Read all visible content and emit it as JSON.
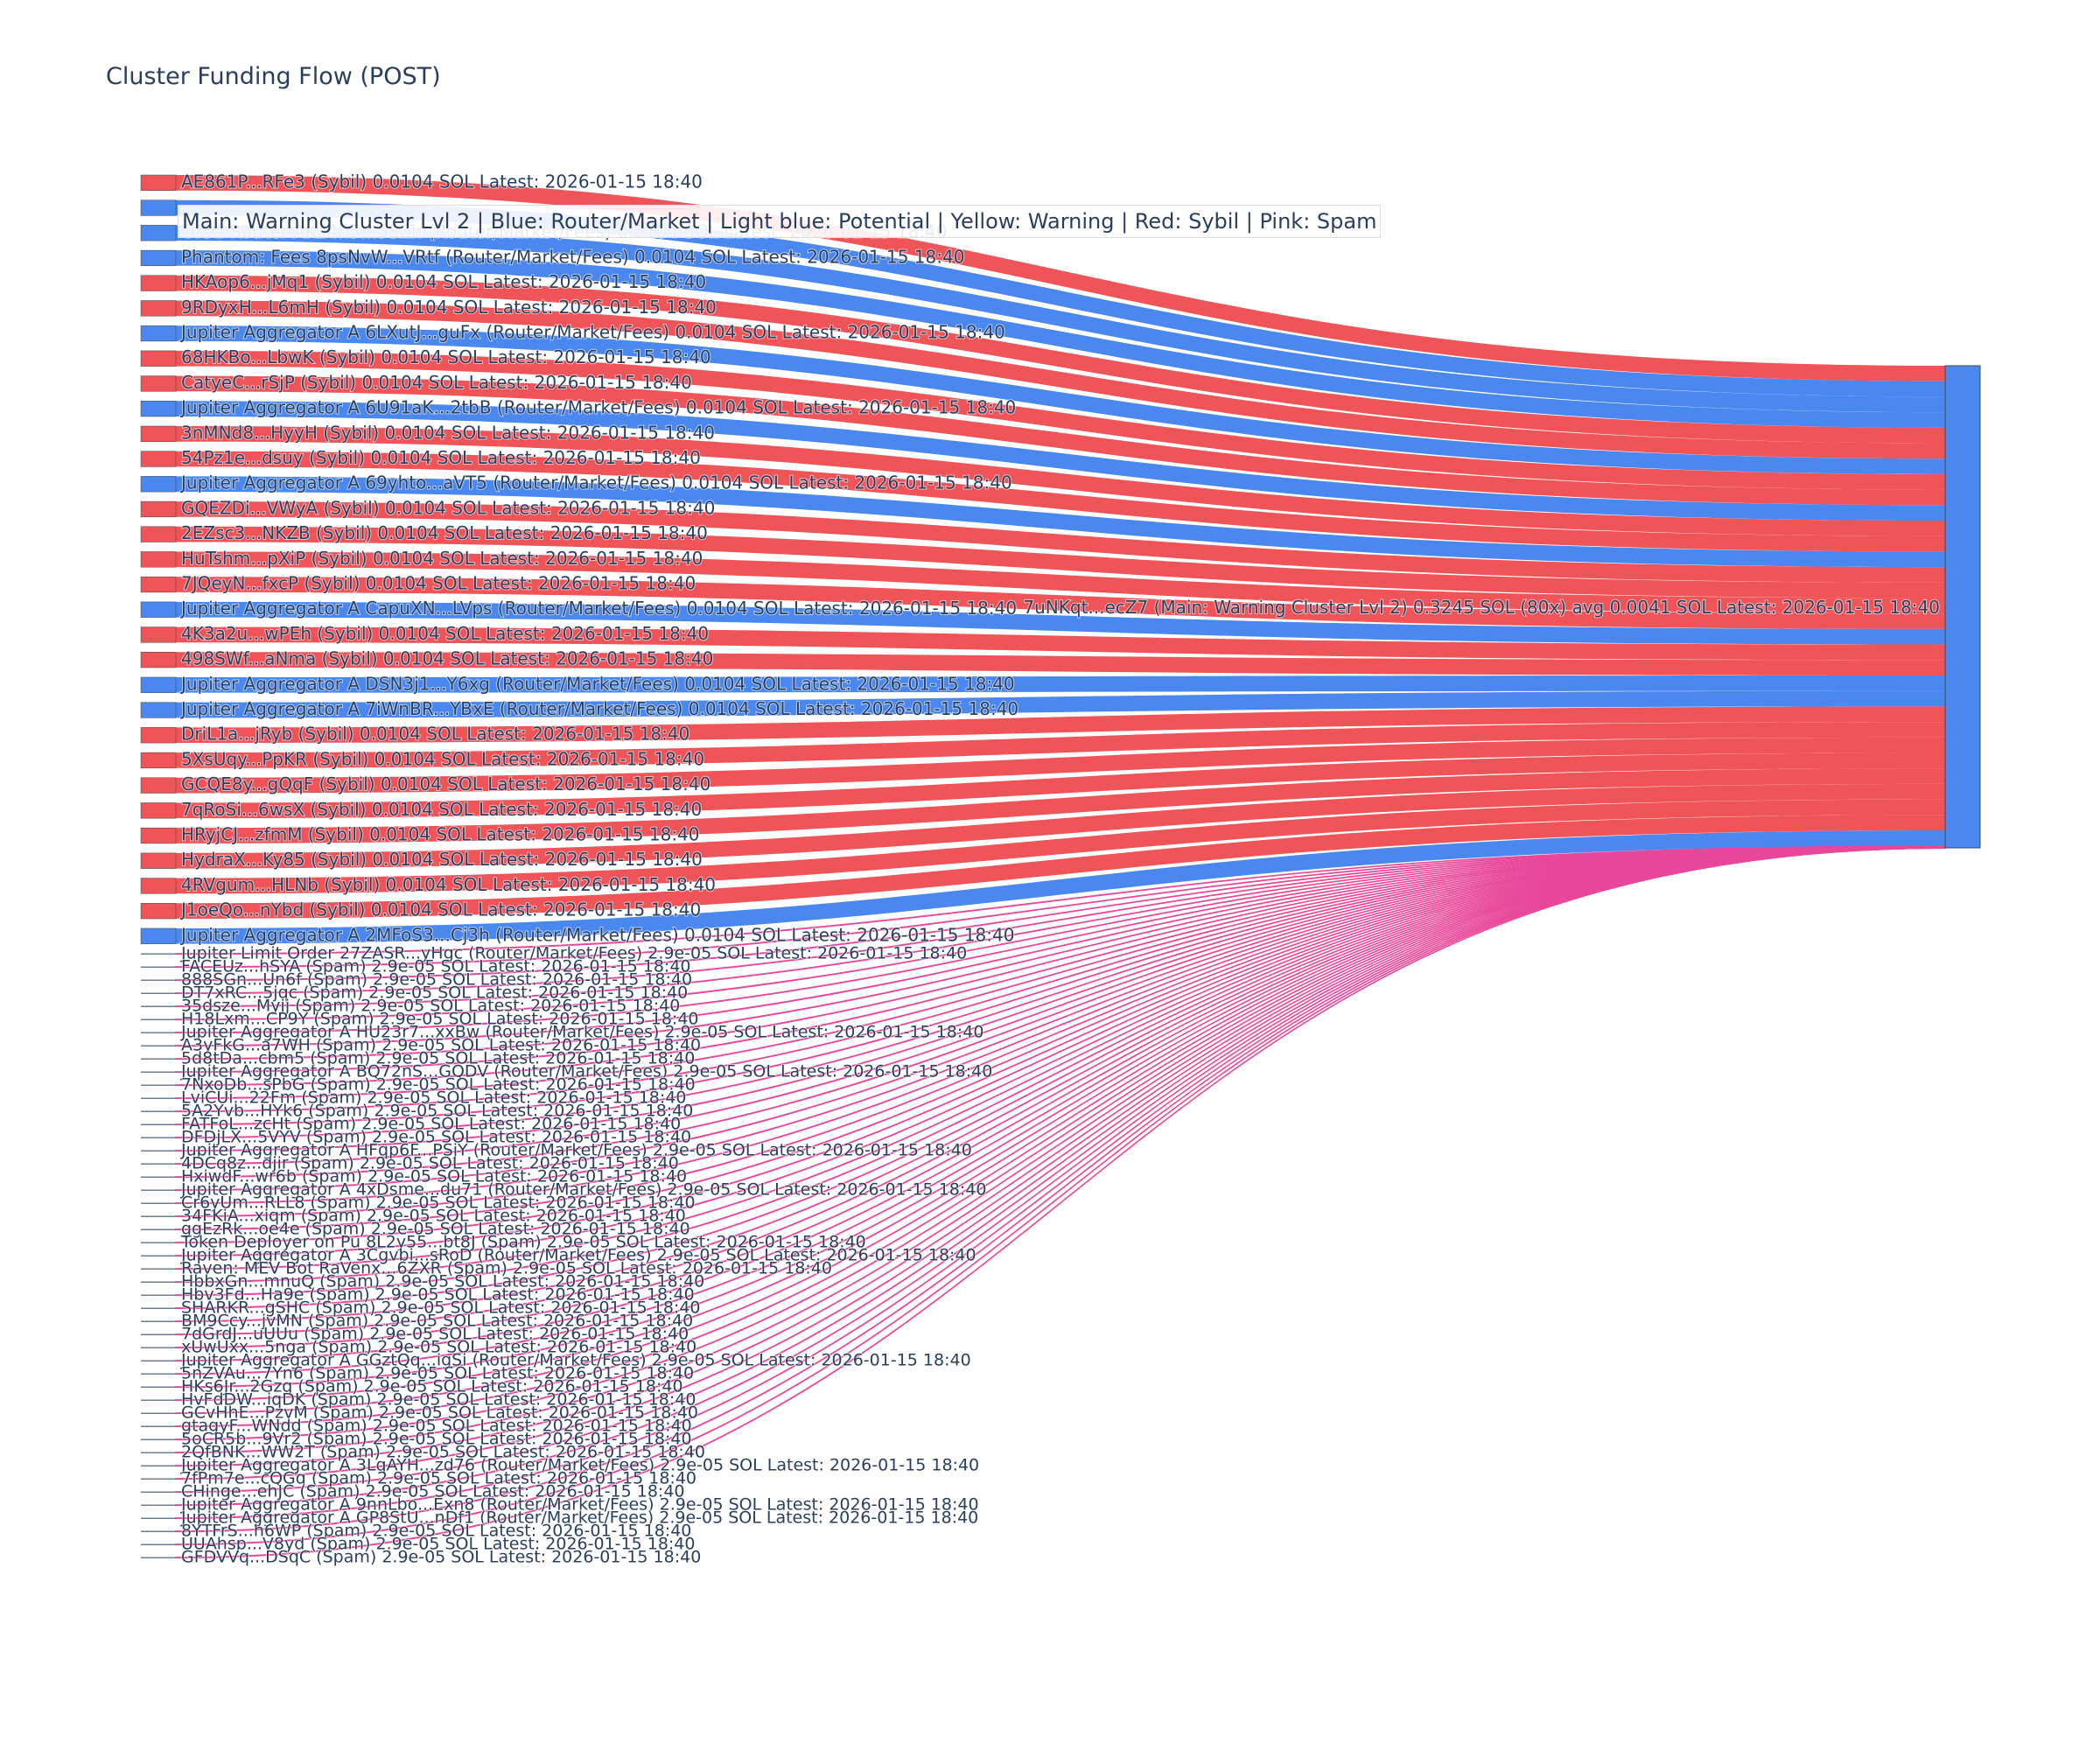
{
  "chart_data": {
    "type": "sankey",
    "title": "Cluster Funding Flow (POST)",
    "legend": "Main: Warning Cluster Lvl 2 | Blue: Router/Market | Light blue: Potential | Yellow: Warning | Red: Sybil | Pink: Spam",
    "colors": {
      "sybil": "#ef5459",
      "router": "#4a87ee",
      "spam": "#e8479a",
      "target": "#4a87ee"
    },
    "target": {
      "label": "7uNKqt...ecZ7 (Main: Warning Cluster Lvl 2) 0.3245 SOL (80x) avg 0.0041 SOL Latest: 2026-01-15 18:40",
      "value": 0.3245,
      "count": 80
    },
    "sources": [
      {
        "label": "AE861P...RFe3 (Sybil) 0.0104 SOL Latest: 2026-01-15 18:40",
        "kind": "sybil",
        "value": 0.0104
      },
      {
        "label": "",
        "kind": "router",
        "value": 0.0104
      },
      {
        "label": "OKX: Router AKu4h5...5SZh (Router/Market/Fees) 0.0104 SOL Latest: 2026-01-15 18:40",
        "kind": "router",
        "value": 0.0104
      },
      {
        "label": "Phantom: Fees 8psNvW...VRtf (Router/Market/Fees) 0.0104 SOL Latest: 2026-01-15 18:40",
        "kind": "router",
        "value": 0.0104
      },
      {
        "label": "HKAop6...jMq1 (Sybil) 0.0104 SOL Latest: 2026-01-15 18:40",
        "kind": "sybil",
        "value": 0.0104
      },
      {
        "label": "9RDyxH...L6mH (Sybil) 0.0104 SOL Latest: 2026-01-15 18:40",
        "kind": "sybil",
        "value": 0.0104
      },
      {
        "label": "Jupiter Aggregator A 6LXutJ...guFx (Router/Market/Fees) 0.0104 SOL Latest: 2026-01-15 18:40",
        "kind": "router",
        "value": 0.0104
      },
      {
        "label": "68HKBo...LbwK (Sybil) 0.0104 SOL Latest: 2026-01-15 18:40",
        "kind": "sybil",
        "value": 0.0104
      },
      {
        "label": "CatyeC...rSjP (Sybil) 0.0104 SOL Latest: 2026-01-15 18:40",
        "kind": "sybil",
        "value": 0.0104
      },
      {
        "label": "Jupiter Aggregator A 6U91aK...2tbB (Router/Market/Fees) 0.0104 SOL Latest: 2026-01-15 18:40",
        "kind": "router",
        "value": 0.0104
      },
      {
        "label": "3nMNd8...HyyH (Sybil) 0.0104 SOL Latest: 2026-01-15 18:40",
        "kind": "sybil",
        "value": 0.0104
      },
      {
        "label": "54Pz1e...dsuy (Sybil) 0.0104 SOL Latest: 2026-01-15 18:40",
        "kind": "sybil",
        "value": 0.0104
      },
      {
        "label": "Jupiter Aggregator A 69yhto...aVT5 (Router/Market/Fees) 0.0104 SOL Latest: 2026-01-15 18:40",
        "kind": "router",
        "value": 0.0104
      },
      {
        "label": "GQEZDi...VWyA (Sybil) 0.0104 SOL Latest: 2026-01-15 18:40",
        "kind": "sybil",
        "value": 0.0104
      },
      {
        "label": "2EZsc3...NKZB (Sybil) 0.0104 SOL Latest: 2026-01-15 18:40",
        "kind": "sybil",
        "value": 0.0104
      },
      {
        "label": "HuTshm...pXiP (Sybil) 0.0104 SOL Latest: 2026-01-15 18:40",
        "kind": "sybil",
        "value": 0.0104
      },
      {
        "label": "7JQeyN...fxcP (Sybil) 0.0104 SOL Latest: 2026-01-15 18:40",
        "kind": "sybil",
        "value": 0.0104
      },
      {
        "label": "Jupiter Aggregator A CapuXN...LVps (Router/Market/Fees) 0.0104 SOL Latest: 2026-01-15 18:40",
        "kind": "router",
        "value": 0.0104
      },
      {
        "label": "4K3a2u...wPEh (Sybil) 0.0104 SOL Latest: 2026-01-15 18:40",
        "kind": "sybil",
        "value": 0.0104
      },
      {
        "label": "498SWf...aNma (Sybil) 0.0104 SOL Latest: 2026-01-15 18:40",
        "kind": "sybil",
        "value": 0.0104
      },
      {
        "label": "Jupiter Aggregator A DSN3j1...Y6xg (Router/Market/Fees) 0.0104 SOL Latest: 2026-01-15 18:40",
        "kind": "router",
        "value": 0.0104
      },
      {
        "label": "Jupiter Aggregator A 7iWnBR...YBxE (Router/Market/Fees) 0.0104 SOL Latest: 2026-01-15 18:40",
        "kind": "router",
        "value": 0.0104
      },
      {
        "label": "DriL1a...jRyb (Sybil) 0.0104 SOL Latest: 2026-01-15 18:40",
        "kind": "sybil",
        "value": 0.0104
      },
      {
        "label": "5XsUqy...PpKR (Sybil) 0.0104 SOL Latest: 2026-01-15 18:40",
        "kind": "sybil",
        "value": 0.0104
      },
      {
        "label": "GCQE8y...gQqF (Sybil) 0.0104 SOL Latest: 2026-01-15 18:40",
        "kind": "sybil",
        "value": 0.0104
      },
      {
        "label": "7qRoSi...6wsX (Sybil) 0.0104 SOL Latest: 2026-01-15 18:40",
        "kind": "sybil",
        "value": 0.0104
      },
      {
        "label": "HRyjCJ...zfmM (Sybil) 0.0104 SOL Latest: 2026-01-15 18:40",
        "kind": "sybil",
        "value": 0.0104
      },
      {
        "label": "HydraX...Ky85 (Sybil) 0.0104 SOL Latest: 2026-01-15 18:40",
        "kind": "sybil",
        "value": 0.0104
      },
      {
        "label": "4RVgum...HLNb (Sybil) 0.0104 SOL Latest: 2026-01-15 18:40",
        "kind": "sybil",
        "value": 0.0104
      },
      {
        "label": "J1oeQo...nYbd (Sybil) 0.0104 SOL Latest: 2026-01-15 18:40",
        "kind": "sybil",
        "value": 0.0104
      },
      {
        "label": "Jupiter Aggregator A 2MFoS3...Cj3h (Router/Market/Fees) 0.0104 SOL Latest: 2026-01-15 18:40",
        "kind": "router",
        "value": 0.0104
      },
      {
        "label": "Jupiter Limit Order 27ZASR...yHgc (Router/Market/Fees) 2.9e-05 SOL Latest: 2026-01-15 18:40",
        "kind": "spam",
        "value": 2.9e-05
      },
      {
        "label": "FACEUz...hSYA (Spam) 2.9e-05 SOL Latest: 2026-01-15 18:40",
        "kind": "spam",
        "value": 2.9e-05
      },
      {
        "label": "888SGn...Un6f (Spam) 2.9e-05 SOL Latest: 2026-01-15 18:40",
        "kind": "spam",
        "value": 2.9e-05
      },
      {
        "label": "DT7xRC...5jqc (Spam) 2.9e-05 SOL Latest: 2026-01-15 18:40",
        "kind": "spam",
        "value": 2.9e-05
      },
      {
        "label": "35dsze...Myjj (Spam) 2.9e-05 SOL Latest: 2026-01-15 18:40",
        "kind": "spam",
        "value": 2.9e-05
      },
      {
        "label": "H18Lxm...CP9Y (Spam) 2.9e-05 SOL Latest: 2026-01-15 18:40",
        "kind": "spam",
        "value": 2.9e-05
      },
      {
        "label": "Jupiter Aggregator A HU23r7...xxBw (Router/Market/Fees) 2.9e-05 SOL Latest: 2026-01-15 18:40",
        "kind": "spam",
        "value": 2.9e-05
      },
      {
        "label": "A3yFkG...a7WH (Spam) 2.9e-05 SOL Latest: 2026-01-15 18:40",
        "kind": "spam",
        "value": 2.9e-05
      },
      {
        "label": "5d8tDa...cbm5 (Spam) 2.9e-05 SOL Latest: 2026-01-15 18:40",
        "kind": "spam",
        "value": 2.9e-05
      },
      {
        "label": "Jupiter Aggregator A BQ72nS...GQDV (Router/Market/Fees) 2.9e-05 SOL Latest: 2026-01-15 18:40",
        "kind": "spam",
        "value": 2.9e-05
      },
      {
        "label": "7NxoDb...sPbG (Spam) 2.9e-05 SOL Latest: 2026-01-15 18:40",
        "kind": "spam",
        "value": 2.9e-05
      },
      {
        "label": "LviCUi...22Fm (Spam) 2.9e-05 SOL Latest: 2026-01-15 18:40",
        "kind": "spam",
        "value": 2.9e-05
      },
      {
        "label": "5A2Yvb...HYk6 (Spam) 2.9e-05 SOL Latest: 2026-01-15 18:40",
        "kind": "spam",
        "value": 2.9e-05
      },
      {
        "label": "FATFoL...zcHt (Spam) 2.9e-05 SOL Latest: 2026-01-15 18:40",
        "kind": "spam",
        "value": 2.9e-05
      },
      {
        "label": "DFDjLX...5VYV (Spam) 2.9e-05 SOL Latest: 2026-01-15 18:40",
        "kind": "spam",
        "value": 2.9e-05
      },
      {
        "label": "Jupiter Aggregator A HFqp6F...PSjY (Router/Market/Fees) 2.9e-05 SOL Latest: 2026-01-15 18:40",
        "kind": "spam",
        "value": 2.9e-05
      },
      {
        "label": "4DCq8z...djir (Spam) 2.9e-05 SOL Latest: 2026-01-15 18:40",
        "kind": "spam",
        "value": 2.9e-05
      },
      {
        "label": "HxiwdF...wr6b (Spam) 2.9e-05 SOL Latest: 2026-01-15 18:40",
        "kind": "spam",
        "value": 2.9e-05
      },
      {
        "label": "Jupiter Aggregator A 4xDsme...du71 (Router/Market/Fees) 2.9e-05 SOL Latest: 2026-01-15 18:40",
        "kind": "spam",
        "value": 2.9e-05
      },
      {
        "label": "Cr6yUm...RLL8 (Spam) 2.9e-05 SOL Latest: 2026-01-15 18:40",
        "kind": "spam",
        "value": 2.9e-05
      },
      {
        "label": "34FKiA...xiqm (Spam) 2.9e-05 SOL Latest: 2026-01-15 18:40",
        "kind": "spam",
        "value": 2.9e-05
      },
      {
        "label": "ggEzRk...oe4e (Spam) 2.9e-05 SOL Latest: 2026-01-15 18:40",
        "kind": "spam",
        "value": 2.9e-05
      },
      {
        "label": "Token Deployer on Pu 8L2y55...bt8J (Spam) 2.9e-05 SOL Latest: 2026-01-15 18:40",
        "kind": "spam",
        "value": 2.9e-05
      },
      {
        "label": "Jupiter Aggregator A 3Cgvbi...sRoD (Router/Market/Fees) 2.9e-05 SOL Latest: 2026-01-15 18:40",
        "kind": "spam",
        "value": 2.9e-05
      },
      {
        "label": "Raven: MEV Bot RaVenx...6ZXR (Spam) 2.9e-05 SOL Latest: 2026-01-15 18:40",
        "kind": "spam",
        "value": 2.9e-05
      },
      {
        "label": "HbbxGn...mnuQ (Spam) 2.9e-05 SOL Latest: 2026-01-15 18:40",
        "kind": "spam",
        "value": 2.9e-05
      },
      {
        "label": "Hbv3Fd...Ha9e (Spam) 2.9e-05 SOL Latest: 2026-01-15 18:40",
        "kind": "spam",
        "value": 2.9e-05
      },
      {
        "label": "SHARKR...gSHC (Spam) 2.9e-05 SOL Latest: 2026-01-15 18:40",
        "kind": "spam",
        "value": 2.9e-05
      },
      {
        "label": "BM9Ccy...jvMN (Spam) 2.9e-05 SOL Latest: 2026-01-15 18:40",
        "kind": "spam",
        "value": 2.9e-05
      },
      {
        "label": "7dGrdJ...uUUu (Spam) 2.9e-05 SOL Latest: 2026-01-15 18:40",
        "kind": "spam",
        "value": 2.9e-05
      },
      {
        "label": "xUwUxx...5nga (Spam) 2.9e-05 SOL Latest: 2026-01-15 18:40",
        "kind": "spam",
        "value": 2.9e-05
      },
      {
        "label": "Jupiter Aggregator A GGztQq...igSi (Router/Market/Fees) 2.9e-05 SOL Latest: 2026-01-15 18:40",
        "kind": "spam",
        "value": 2.9e-05
      },
      {
        "label": "5nZVAu...7Yn6 (Spam) 2.9e-05 SOL Latest: 2026-01-15 18:40",
        "kind": "spam",
        "value": 2.9e-05
      },
      {
        "label": "HKs6Jr...2Gzq (Spam) 2.9e-05 SOL Latest: 2026-01-15 18:40",
        "kind": "spam",
        "value": 2.9e-05
      },
      {
        "label": "HvFdDW...iqDK (Spam) 2.9e-05 SOL Latest: 2026-01-15 18:40",
        "kind": "spam",
        "value": 2.9e-05
      },
      {
        "label": "GCvHhE...PzvM (Spam) 2.9e-05 SOL Latest: 2026-01-15 18:40",
        "kind": "spam",
        "value": 2.9e-05
      },
      {
        "label": "gtagyF...WNdd (Spam) 2.9e-05 SOL Latest: 2026-01-15 18:40",
        "kind": "spam",
        "value": 2.9e-05
      },
      {
        "label": "5oCR5b...9Vr2 (Spam) 2.9e-05 SOL Latest: 2026-01-15 18:40",
        "kind": "spam",
        "value": 2.9e-05
      },
      {
        "label": "2QfBNK...WW2T (Spam) 2.9e-05 SOL Latest: 2026-01-15 18:40",
        "kind": "spam",
        "value": 2.9e-05
      },
      {
        "label": "Jupiter Aggregator A 3LqAYH...zd76 (Router/Market/Fees) 2.9e-05 SOL Latest: 2026-01-15 18:40",
        "kind": "spam",
        "value": 2.9e-05
      },
      {
        "label": "7fPm7e...cQGq (Spam) 2.9e-05 SOL Latest: 2026-01-15 18:40",
        "kind": "spam",
        "value": 2.9e-05
      },
      {
        "label": "CHinge...ehJC (Spam) 2.9e-05 SOL Latest: 2026-01-15 18:40",
        "kind": "spam",
        "value": 2.9e-05
      },
      {
        "label": "Jupiter Aggregator A 9nnLbo...Exn8 (Router/Market/Fees) 2.9e-05 SOL Latest: 2026-01-15 18:40",
        "kind": "spam",
        "value": 2.9e-05
      },
      {
        "label": "Jupiter Aggregator A GP8StU...nDf1 (Router/Market/Fees) 2.9e-05 SOL Latest: 2026-01-15 18:40",
        "kind": "spam",
        "value": 2.9e-05
      },
      {
        "label": "8YTFrS...h6WP (Spam) 2.9e-05 SOL Latest: 2026-01-15 18:40",
        "kind": "spam",
        "value": 2.9e-05
      },
      {
        "label": "UUAhsp...V8yd (Spam) 2.9e-05 SOL Latest: 2026-01-15 18:40",
        "kind": "spam",
        "value": 2.9e-05
      },
      {
        "label": "GFDVVq...DSqC (Spam) 2.9e-05 SOL Latest: 2026-01-15 18:40",
        "kind": "spam",
        "value": 2.9e-05
      }
    ]
  }
}
